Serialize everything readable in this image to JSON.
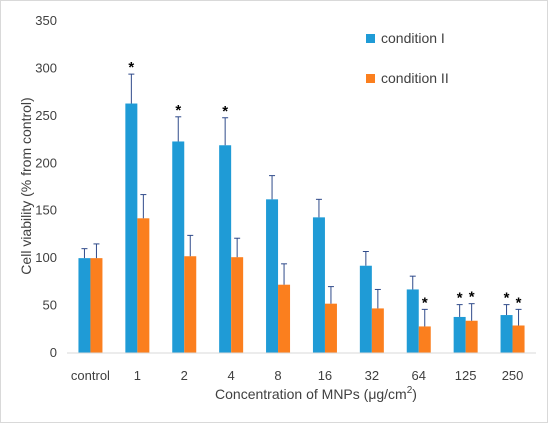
{
  "chart_data": {
    "type": "bar",
    "title": "",
    "xlabel_main": "Concentration of MNPs (μg/cm",
    "xlabel_sup": "2",
    "xlabel_end": ")",
    "ylabel": "Cell viability (% from control)",
    "ylim": [
      0,
      350
    ],
    "yticks": [
      0,
      50,
      100,
      150,
      200,
      250,
      300,
      350
    ],
    "grid": false,
    "legend_position": "top-right",
    "categories": [
      "control",
      "1",
      "2",
      "4",
      "8",
      "16",
      "32",
      "64",
      "125",
      "250"
    ],
    "series": [
      {
        "name": "condition I",
        "color": "#1f9bd6",
        "values": [
          100,
          263,
          223,
          219,
          162,
          143,
          92,
          67,
          38,
          40
        ],
        "errors": [
          10,
          31,
          26,
          29,
          25,
          19,
          15,
          14,
          13,
          11
        ],
        "significant": [
          false,
          true,
          true,
          true,
          false,
          false,
          false,
          false,
          true,
          true
        ]
      },
      {
        "name": "condition II",
        "color": "#fb7f1e",
        "values": [
          100,
          142,
          102,
          101,
          72,
          52,
          47,
          28,
          34,
          29
        ],
        "errors": [
          15,
          25,
          22,
          20,
          22,
          18,
          20,
          18,
          18,
          17
        ],
        "significant": [
          false,
          false,
          false,
          false,
          false,
          false,
          false,
          true,
          true,
          true
        ]
      }
    ],
    "significance_marker": "*",
    "errorbar_color": "#2f4a8a"
  }
}
